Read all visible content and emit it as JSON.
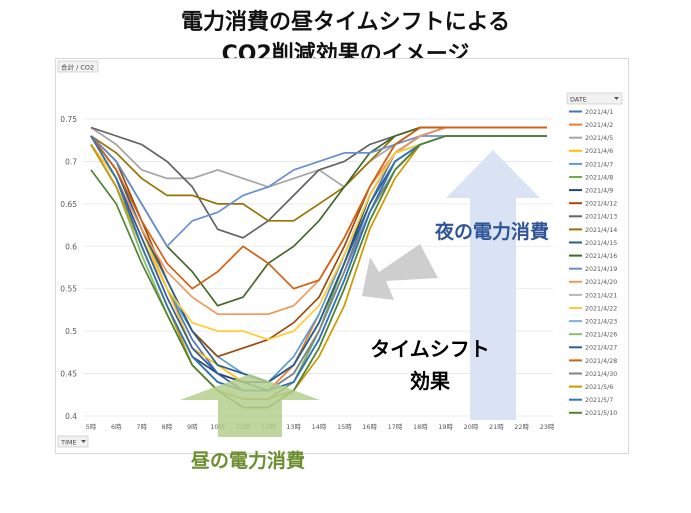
{
  "titles": {
    "line1": "電力消費の昼タイムシフトによる",
    "line2": "CO2削減効果のイメージ"
  },
  "chart_data": {
    "type": "line",
    "ylabel_button": "合計 / CO2",
    "x_filter_button": "TIME",
    "legend_header": "DATE",
    "ylim": [
      0.4,
      0.75
    ],
    "yticks": [
      0.4,
      0.45,
      0.5,
      0.55,
      0.6,
      0.65,
      0.7,
      0.75
    ],
    "categories": [
      "5時",
      "6時",
      "7時",
      "8時",
      "9時",
      "10時",
      "11時",
      "12時",
      "13時",
      "14時",
      "15時",
      "16時",
      "17時",
      "18時",
      "19時",
      "20時",
      "21時",
      "22時",
      "23時"
    ],
    "grid": true,
    "legend_position": "right",
    "series": [
      {
        "name": "2021/4/1",
        "color": "#4472c4",
        "values": [
          0.73,
          0.69,
          0.62,
          0.55,
          0.49,
          0.45,
          0.44,
          0.43,
          0.45,
          0.5,
          0.57,
          0.65,
          0.71,
          0.73,
          0.74,
          0.74,
          0.74,
          0.74,
          0.74
        ]
      },
      {
        "name": "2021/4/2",
        "color": "#ed7d31",
        "values": [
          0.73,
          0.68,
          0.6,
          0.53,
          0.47,
          0.44,
          0.43,
          0.43,
          0.46,
          0.52,
          0.59,
          0.66,
          0.71,
          0.73,
          0.74,
          0.74,
          0.74,
          0.74,
          0.74
        ]
      },
      {
        "name": "2021/4/5",
        "color": "#a5a5a5",
        "values": [
          0.74,
          0.72,
          0.69,
          0.68,
          0.68,
          0.69,
          0.68,
          0.67,
          0.68,
          0.69,
          0.67,
          0.7,
          0.72,
          0.73,
          0.74,
          0.74,
          0.74,
          0.74,
          0.74
        ]
      },
      {
        "name": "2021/4/6",
        "color": "#ffc000",
        "values": [
          0.73,
          0.69,
          0.62,
          0.55,
          0.48,
          0.46,
          0.44,
          0.44,
          0.46,
          0.51,
          0.58,
          0.65,
          0.7,
          0.72,
          0.73,
          0.73,
          0.73,
          0.73,
          0.73
        ]
      },
      {
        "name": "2021/4/7",
        "color": "#5b9bd5",
        "values": [
          0.72,
          0.68,
          0.61,
          0.55,
          0.5,
          0.47,
          0.45,
          0.44,
          0.47,
          0.52,
          0.59,
          0.66,
          0.71,
          0.72,
          0.73,
          0.73,
          0.73,
          0.73,
          0.73
        ]
      },
      {
        "name": "2021/4/8",
        "color": "#70ad47",
        "values": [
          0.72,
          0.67,
          0.59,
          0.52,
          0.46,
          0.43,
          0.42,
          0.42,
          0.44,
          0.5,
          0.58,
          0.66,
          0.71,
          0.72,
          0.73,
          0.73,
          0.73,
          0.73,
          0.73
        ]
      },
      {
        "name": "2021/4/9",
        "color": "#264478",
        "values": [
          0.73,
          0.68,
          0.6,
          0.53,
          0.47,
          0.45,
          0.44,
          0.44,
          0.46,
          0.51,
          0.58,
          0.66,
          0.71,
          0.73,
          0.74,
          0.74,
          0.74,
          0.74,
          0.74
        ]
      },
      {
        "name": "2021/4/12",
        "color": "#9e480e",
        "values": [
          0.73,
          0.7,
          0.63,
          0.56,
          0.5,
          0.47,
          0.48,
          0.49,
          0.51,
          0.54,
          0.6,
          0.67,
          0.72,
          0.74,
          0.74,
          0.74,
          0.74,
          0.74,
          0.74
        ]
      },
      {
        "name": "2021/4/13",
        "color": "#636363",
        "values": [
          0.74,
          0.73,
          0.72,
          0.7,
          0.67,
          0.62,
          0.61,
          0.63,
          0.66,
          0.69,
          0.7,
          0.72,
          0.73,
          0.74,
          0.74,
          0.74,
          0.74,
          0.74,
          0.74
        ]
      },
      {
        "name": "2021/4/14",
        "color": "#997300",
        "values": [
          0.73,
          0.71,
          0.68,
          0.66,
          0.66,
          0.65,
          0.65,
          0.63,
          0.63,
          0.65,
          0.67,
          0.7,
          0.73,
          0.74,
          0.74,
          0.74,
          0.74,
          0.74,
          0.74
        ]
      },
      {
        "name": "2021/4/15",
        "color": "#255e91",
        "values": [
          0.73,
          0.69,
          0.62,
          0.56,
          0.5,
          0.46,
          0.45,
          0.44,
          0.46,
          0.51,
          0.58,
          0.65,
          0.7,
          0.72,
          0.73,
          0.73,
          0.73,
          0.73,
          0.73
        ]
      },
      {
        "name": "2021/4/16",
        "color": "#43682b",
        "values": [
          0.73,
          0.7,
          0.65,
          0.6,
          0.57,
          0.53,
          0.54,
          0.58,
          0.6,
          0.63,
          0.67,
          0.71,
          0.73,
          0.74,
          0.74,
          0.74,
          0.74,
          0.74,
          0.74
        ]
      },
      {
        "name": "2021/4/19",
        "color": "#698ed0",
        "values": [
          0.73,
          0.7,
          0.65,
          0.6,
          0.63,
          0.64,
          0.66,
          0.67,
          0.69,
          0.7,
          0.71,
          0.71,
          0.72,
          0.73,
          0.73,
          0.73,
          0.73,
          0.73,
          0.73
        ]
      },
      {
        "name": "2021/4/20",
        "color": "#f1975a",
        "values": [
          0.72,
          0.68,
          0.62,
          0.57,
          0.54,
          0.52,
          0.52,
          0.52,
          0.53,
          0.56,
          0.61,
          0.67,
          0.71,
          0.73,
          0.74,
          0.74,
          0.74,
          0.74,
          0.74
        ]
      },
      {
        "name": "2021/4/21",
        "color": "#b7b7b7",
        "values": [
          0.72,
          0.67,
          0.6,
          0.53,
          0.47,
          0.44,
          0.43,
          0.43,
          0.45,
          0.5,
          0.57,
          0.64,
          0.7,
          0.72,
          0.73,
          0.73,
          0.73,
          0.73,
          0.73
        ]
      },
      {
        "name": "2021/4/22",
        "color": "#ffcd33",
        "values": [
          0.72,
          0.68,
          0.61,
          0.55,
          0.51,
          0.5,
          0.5,
          0.49,
          0.5,
          0.53,
          0.59,
          0.66,
          0.71,
          0.72,
          0.73,
          0.73,
          0.73,
          0.73,
          0.73
        ]
      },
      {
        "name": "2021/4/23",
        "color": "#7cafdd",
        "values": [
          0.72,
          0.67,
          0.6,
          0.53,
          0.47,
          0.44,
          0.43,
          0.43,
          0.45,
          0.5,
          0.57,
          0.64,
          0.69,
          0.72,
          0.73,
          0.73,
          0.73,
          0.73,
          0.73
        ]
      },
      {
        "name": "2021/4/26",
        "color": "#8cc168",
        "values": [
          0.72,
          0.67,
          0.59,
          0.52,
          0.46,
          0.43,
          0.42,
          0.42,
          0.43,
          0.48,
          0.55,
          0.63,
          0.69,
          0.72,
          0.73,
          0.73,
          0.73,
          0.73,
          0.73
        ]
      },
      {
        "name": "2021/4/27",
        "color": "#335aa1",
        "values": [
          0.73,
          0.68,
          0.61,
          0.54,
          0.48,
          0.45,
          0.43,
          0.43,
          0.44,
          0.49,
          0.56,
          0.64,
          0.7,
          0.72,
          0.73,
          0.73,
          0.73,
          0.73,
          0.73
        ]
      },
      {
        "name": "2021/4/28",
        "color": "#d26012",
        "values": [
          0.73,
          0.69,
          0.63,
          0.58,
          0.55,
          0.57,
          0.6,
          0.58,
          0.55,
          0.56,
          0.61,
          0.67,
          0.72,
          0.74,
          0.74,
          0.74,
          0.74,
          0.74,
          0.74
        ]
      },
      {
        "name": "2021/4/30",
        "color": "#848484",
        "values": [
          0.72,
          0.67,
          0.6,
          0.53,
          0.47,
          0.44,
          0.43,
          0.43,
          0.45,
          0.5,
          0.57,
          0.64,
          0.69,
          0.72,
          0.73,
          0.73,
          0.73,
          0.73,
          0.73
        ]
      },
      {
        "name": "2021/5/6",
        "color": "#cc9a00",
        "values": [
          0.72,
          0.67,
          0.6,
          0.53,
          0.46,
          0.43,
          0.42,
          0.42,
          0.43,
          0.47,
          0.53,
          0.62,
          0.68,
          0.72,
          0.73,
          0.73,
          0.73,
          0.73,
          0.73
        ]
      },
      {
        "name": "2021/5/7",
        "color": "#2e75b6",
        "values": [
          0.73,
          0.68,
          0.6,
          0.53,
          0.47,
          0.44,
          0.43,
          0.43,
          0.44,
          0.49,
          0.56,
          0.64,
          0.7,
          0.72,
          0.73,
          0.73,
          0.73,
          0.73,
          0.73
        ]
      },
      {
        "name": "2021/5/10",
        "color": "#548235",
        "values": [
          0.69,
          0.65,
          0.58,
          0.52,
          0.46,
          0.43,
          0.41,
          0.41,
          0.43,
          0.48,
          0.55,
          0.63,
          0.69,
          0.72,
          0.73,
          0.73,
          0.73,
          0.73,
          0.73
        ]
      }
    ]
  },
  "annotations": {
    "night": "夜の電力消費",
    "timeshift_line1": "タイムシフト",
    "timeshift_line2": "効果",
    "day": "昼の電力消費"
  },
  "colors": {
    "night_text": "#2f5597",
    "day_text": "#6b8e2f",
    "up_arrow": "#dae3f3",
    "shift_arrow": "#c9c9c9",
    "day_arrow": "#b4cf8e"
  }
}
